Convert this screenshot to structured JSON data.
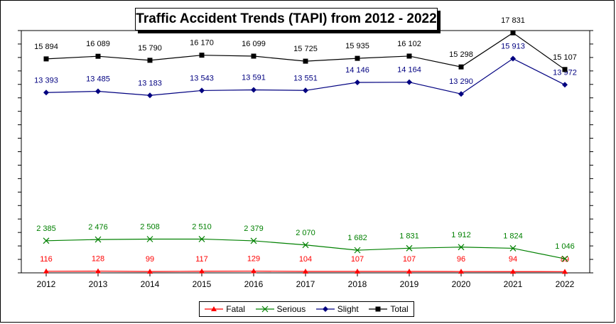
{
  "chart_data": {
    "type": "line",
    "title": "Traffic Accident Trends (TAPI) from 2012 - 2022",
    "x": [
      "2012",
      "2013",
      "2014",
      "2015",
      "2016",
      "2017",
      "2018",
      "2019",
      "2020",
      "2021",
      "2022"
    ],
    "ylim": [
      0,
      18000
    ],
    "grid": false,
    "legend_position": "bottom",
    "series": [
      {
        "name": "Fatal",
        "color": "#ff0000",
        "marker": "triangle",
        "values": [
          116,
          128,
          99,
          117,
          129,
          104,
          107,
          107,
          96,
          94,
          89
        ],
        "labels": [
          "116",
          "128",
          "99",
          "117",
          "129",
          "104",
          "107",
          "107",
          "96",
          "94",
          "89"
        ]
      },
      {
        "name": "Serious",
        "color": "#008000",
        "marker": "x",
        "values": [
          2385,
          2476,
          2508,
          2510,
          2379,
          2070,
          1682,
          1831,
          1912,
          1824,
          1046
        ],
        "labels": [
          "2 385",
          "2 476",
          "2 508",
          "2 510",
          "2 379",
          "2 070",
          "1 682",
          "1 831",
          "1 912",
          "1 824",
          "1 046"
        ]
      },
      {
        "name": "Slight",
        "color": "#000080",
        "marker": "diamond",
        "values": [
          13393,
          13485,
          13183,
          13543,
          13591,
          13551,
          14146,
          14164,
          13290,
          15913,
          13972
        ],
        "labels": [
          "13 393",
          "13 485",
          "13 183",
          "13 543",
          "13 591",
          "13 551",
          "14 146",
          "14 164",
          "13 290",
          "15 913",
          "13 972"
        ]
      },
      {
        "name": "Total",
        "color": "#000000",
        "marker": "square",
        "values": [
          15894,
          16089,
          15790,
          16170,
          16099,
          15725,
          15935,
          16102,
          15298,
          17831,
          15107
        ],
        "labels": [
          "15 894",
          "16 089",
          "15 790",
          "16 170",
          "16 099",
          "15 725",
          "15 935",
          "16 102",
          "15 298",
          "17 831",
          "15 107"
        ]
      }
    ]
  }
}
